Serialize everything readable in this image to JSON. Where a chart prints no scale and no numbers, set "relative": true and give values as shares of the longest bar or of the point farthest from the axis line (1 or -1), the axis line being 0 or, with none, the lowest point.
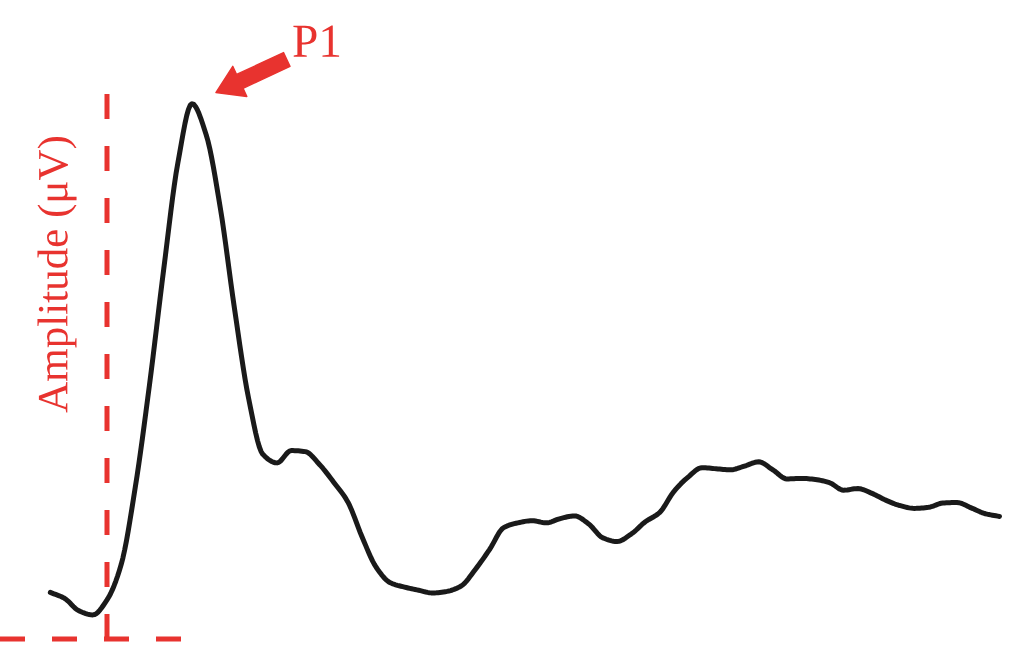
{
  "chart_data": {
    "type": "line",
    "relative": true,
    "ylabel": "Amplitude (μV)",
    "categories": [
      null,
      null,
      null,
      null,
      null,
      null,
      null,
      null,
      null,
      null,
      null,
      null,
      null,
      null,
      null,
      null,
      null,
      null,
      null,
      null,
      null,
      null,
      null,
      null,
      null,
      null,
      null,
      null,
      null,
      null,
      null,
      null,
      null,
      null,
      null,
      null,
      null,
      null,
      null,
      null,
      null,
      null,
      null,
      null,
      null,
      null,
      null,
      null,
      null,
      null,
      null,
      null,
      null,
      null,
      null,
      null,
      null,
      null,
      null,
      null,
      null,
      null,
      null,
      null,
      null,
      null,
      null,
      null
    ],
    "series": [
      {
        "color": "#1a1a1a",
        "values": [
          0.087,
          0.076,
          0.053,
          0.045,
          0.073,
          0.139,
          0.284,
          0.475,
          0.69,
          0.889,
          1,
          0.942,
          0.805,
          0.617,
          0.449,
          0.345,
          0.329,
          0.352,
          0.35,
          0.326,
          0.293,
          0.256,
          0.191,
          0.134,
          0.105,
          0.097,
          0.091,
          0.086,
          0.089,
          0.099,
          0.13,
          0.167,
          0.208,
          0.217,
          0.221,
          0.217,
          0.225,
          0.23,
          0.215,
          0.189,
          0.182,
          0.196,
          0.219,
          0.236,
          0.275,
          0.302,
          0.32,
          0.318,
          0.316,
          0.323,
          0.331,
          0.316,
          0.299,
          0.3,
          0.298,
          0.292,
          0.278,
          0.281,
          0.272,
          0.259,
          0.249,
          0.244,
          0.246,
          0.254,
          0.255,
          0.245,
          0.234,
          0.229
        ]
      }
    ],
    "ref_lines": [
      {
        "axis": "y",
        "value": 0,
        "color": "#e8332f",
        "line_style": "dashed"
      }
    ],
    "annotations": [
      "P1"
    ]
  }
}
